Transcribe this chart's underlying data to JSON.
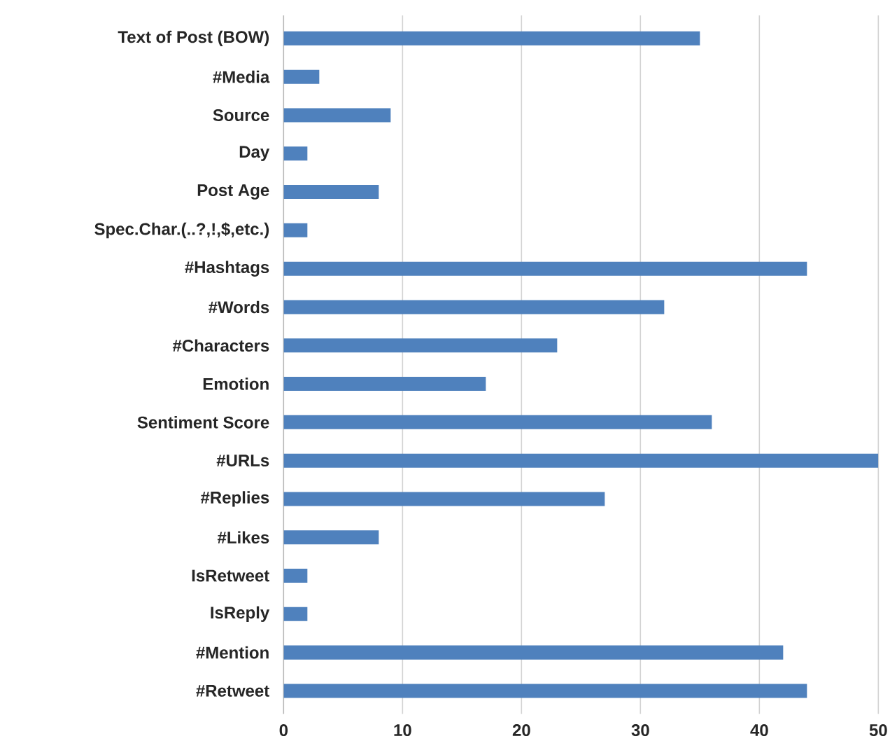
{
  "chart_data": {
    "type": "bar",
    "orientation": "horizontal",
    "categories": [
      "Text of Post (BOW)",
      "#Media",
      "Source",
      "Day",
      "Post Age",
      "Spec.Char.(..?,!,$,etc.)",
      "#Hashtags",
      "#Words",
      "#Characters",
      "Emotion",
      "Sentiment Score",
      "#URLs",
      "#Replies",
      "#Likes",
      "IsRetweet",
      "IsReply",
      "#Mention",
      "#Retweet"
    ],
    "values": [
      35,
      3,
      9,
      2,
      8,
      2,
      44,
      32,
      23,
      17,
      36,
      50,
      27,
      8,
      2,
      2,
      42,
      44
    ],
    "color": "#4f81bd",
    "xlim": [
      0,
      50
    ],
    "xticks": [
      0,
      10,
      20,
      30,
      40,
      50
    ],
    "grid": "x"
  }
}
